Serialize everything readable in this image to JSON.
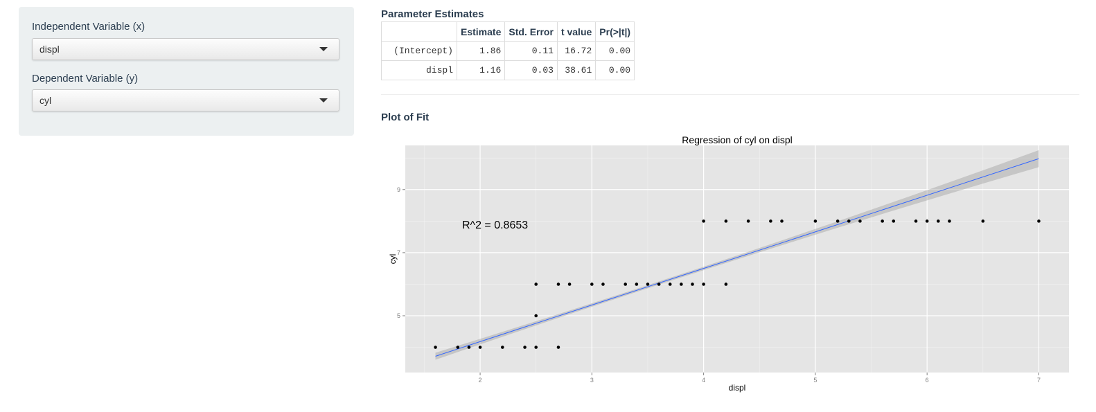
{
  "sidebar": {
    "x_label": "Independent Variable (x)",
    "x_value": "displ",
    "y_label": "Dependent Variable (y)",
    "y_value": "cyl"
  },
  "estimates": {
    "title": "Parameter Estimates",
    "headers": [
      "",
      "Estimate",
      "Std. Error",
      "t value",
      "Pr(>|t|)"
    ],
    "rows": [
      [
        "(Intercept)",
        "1.86",
        "0.11",
        "16.72",
        "0.00"
      ],
      [
        "displ",
        "1.16",
        "0.03",
        "38.61",
        "0.00"
      ]
    ]
  },
  "plot_section_title": "Plot of Fit",
  "chart_data": {
    "type": "scatter",
    "title": "Regression of cyl on displ",
    "xlabel": "displ",
    "ylabel": "cyl",
    "annotation": "R^2 = 0.8653",
    "xlim": [
      1.33,
      7.27
    ],
    "ylim": [
      3.2,
      10.4
    ],
    "xticks": [
      2,
      3,
      4,
      5,
      6,
      7
    ],
    "yticks": [
      5,
      7,
      9
    ],
    "grid": true,
    "points": [
      [
        1.6,
        4
      ],
      [
        1.8,
        4
      ],
      [
        1.9,
        4
      ],
      [
        2.0,
        4
      ],
      [
        2.2,
        4
      ],
      [
        2.4,
        4
      ],
      [
        2.5,
        4
      ],
      [
        2.7,
        4
      ],
      [
        2.5,
        5
      ],
      [
        2.5,
        6
      ],
      [
        2.7,
        6
      ],
      [
        2.8,
        6
      ],
      [
        3.0,
        6
      ],
      [
        3.1,
        6
      ],
      [
        3.3,
        6
      ],
      [
        3.4,
        6
      ],
      [
        3.5,
        6
      ],
      [
        3.6,
        6
      ],
      [
        3.7,
        6
      ],
      [
        3.8,
        6
      ],
      [
        3.9,
        6
      ],
      [
        4.0,
        6
      ],
      [
        4.2,
        6
      ],
      [
        4.0,
        8
      ],
      [
        4.2,
        8
      ],
      [
        4.4,
        8
      ],
      [
        4.6,
        8
      ],
      [
        4.7,
        8
      ],
      [
        5.0,
        8
      ],
      [
        5.2,
        8
      ],
      [
        5.3,
        8
      ],
      [
        5.4,
        8
      ],
      [
        5.6,
        8
      ],
      [
        5.7,
        8
      ],
      [
        5.9,
        8
      ],
      [
        6.0,
        8
      ],
      [
        6.1,
        8
      ],
      [
        6.2,
        8
      ],
      [
        6.5,
        8
      ],
      [
        7.0,
        8
      ]
    ],
    "fit": {
      "intercept": 1.86,
      "slope": 1.16,
      "x_range": [
        1.6,
        7.0
      ],
      "color": "#3366ff",
      "band_color": "#999999"
    },
    "panel_color": "#e5e5e5"
  }
}
